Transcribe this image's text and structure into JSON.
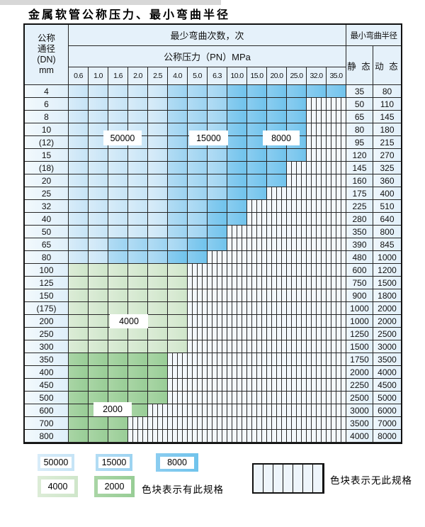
{
  "page": {
    "title": "金属软管公称压力、最小弯曲半径"
  },
  "table": {
    "header": {
      "dn_lines": [
        "公称",
        "通径",
        "(DN)",
        "mm"
      ],
      "bend_cycles": "最少弯曲次数，次",
      "pressure": "公称压力（PN）MPa",
      "min_radius": "最小弯曲半径",
      "static_label": "静 态",
      "dynamic_label": "动 态",
      "pressure_cols": [
        "0.6",
        "1.0",
        "1.6",
        "2.0",
        "2.5",
        "4.0",
        "5.0",
        "6.3",
        "10.0",
        "15.0",
        "20.0",
        "25.0",
        "32.0",
        "35.0"
      ]
    },
    "color_codes": {
      "b1": "50000",
      "b2": "15000",
      "b3": "8000",
      "g1": "4000",
      "g2": "2000",
      "st": "无此规格"
    },
    "rows": [
      {
        "dn": "4",
        "cells": [
          "b1",
          "b1",
          "b1",
          "b1",
          "b1",
          "b2",
          "b2",
          "b2",
          "b3",
          "b3",
          "b3",
          "b3",
          "b3",
          "b3"
        ],
        "s": "35",
        "d": "80"
      },
      {
        "dn": "6",
        "cells": [
          "b1",
          "b1",
          "b1",
          "b1",
          "b1",
          "b2",
          "b2",
          "b2",
          "b3",
          "b3",
          "b3",
          "b3",
          "st",
          "st"
        ],
        "s": "50",
        "d": "110"
      },
      {
        "dn": "8",
        "cells": [
          "b1",
          "b1",
          "b1",
          "b1",
          "b1",
          "b2",
          "b2",
          "b2",
          "b3",
          "b3",
          "b3",
          "b3",
          "st",
          "st"
        ],
        "s": "65",
        "d": "145"
      },
      {
        "dn": "10",
        "cells": [
          "b1",
          "b1",
          "b1",
          "b1",
          "b1",
          "b2",
          "b2",
          "b2",
          "b3",
          "b3",
          "b3",
          "b3",
          "st",
          "st"
        ],
        "s": "80",
        "d": "180"
      },
      {
        "dn": "(12)",
        "cells": [
          "b1",
          "b1",
          "b1",
          "b1",
          "b1",
          "b2",
          "b2",
          "b2",
          "b3",
          "b3",
          "b3",
          "b3",
          "st",
          "st"
        ],
        "s": "95",
        "d": "215"
      },
      {
        "dn": "15",
        "cells": [
          "b1",
          "b1",
          "b1",
          "b1",
          "b1",
          "b2",
          "b2",
          "b2",
          "b3",
          "b3",
          "b3",
          "b3",
          "st",
          "st"
        ],
        "s": "120",
        "d": "270"
      },
      {
        "dn": "(18)",
        "cells": [
          "b1",
          "b1",
          "b1",
          "b1",
          "b1",
          "b2",
          "b2",
          "b2",
          "b3",
          "b3",
          "b3",
          "st",
          "st",
          "st"
        ],
        "s": "145",
        "d": "325"
      },
      {
        "dn": "20",
        "cells": [
          "b1",
          "b1",
          "b1",
          "b1",
          "b1",
          "b2",
          "b2",
          "b2",
          "b3",
          "b3",
          "b3",
          "st",
          "st",
          "st"
        ],
        "s": "160",
        "d": "360"
      },
      {
        "dn": "25",
        "cells": [
          "b1",
          "b1",
          "b1",
          "b1",
          "b1",
          "b2",
          "b2",
          "b2",
          "b3",
          "b3",
          "st",
          "st",
          "st",
          "st"
        ],
        "s": "175",
        "d": "400"
      },
      {
        "dn": "32",
        "cells": [
          "b1",
          "b1",
          "b1",
          "b1",
          "b1",
          "b2",
          "b2",
          "b3",
          "b3",
          "st",
          "st",
          "st",
          "st",
          "st"
        ],
        "s": "225",
        "d": "510"
      },
      {
        "dn": "40",
        "cells": [
          "b1",
          "b1",
          "b1",
          "b1",
          "b1",
          "b2",
          "b2",
          "b3",
          "b3",
          "st",
          "st",
          "st",
          "st",
          "st"
        ],
        "s": "280",
        "d": "640"
      },
      {
        "dn": "50",
        "cells": [
          "b1",
          "b1",
          "b1",
          "b1",
          "b1",
          "b2",
          "b2",
          "b3",
          "st",
          "st",
          "st",
          "st",
          "st",
          "st"
        ],
        "s": "350",
        "d": "800"
      },
      {
        "dn": "65",
        "cells": [
          "b1",
          "b1",
          "b2",
          "b2",
          "b2",
          "b2",
          "b3",
          "b3",
          "st",
          "st",
          "st",
          "st",
          "st",
          "st"
        ],
        "s": "390",
        "d": "845"
      },
      {
        "dn": "80",
        "cells": [
          "b1",
          "b1",
          "b2",
          "b2",
          "b2",
          "b3",
          "b3",
          "st",
          "st",
          "st",
          "st",
          "st",
          "st",
          "st"
        ],
        "s": "480",
        "d": "1000"
      },
      {
        "dn": "100",
        "cells": [
          "g1",
          "g1",
          "g1",
          "g1",
          "g1",
          "g1",
          "st",
          "st",
          "st",
          "st",
          "st",
          "st",
          "st",
          "st"
        ],
        "s": "600",
        "d": "1200"
      },
      {
        "dn": "125",
        "cells": [
          "g1",
          "g1",
          "g1",
          "g1",
          "g1",
          "g1",
          "st",
          "st",
          "st",
          "st",
          "st",
          "st",
          "st",
          "st"
        ],
        "s": "750",
        "d": "1500"
      },
      {
        "dn": "150",
        "cells": [
          "g1",
          "g1",
          "g1",
          "g1",
          "g1",
          "g1",
          "st",
          "st",
          "st",
          "st",
          "st",
          "st",
          "st",
          "st"
        ],
        "s": "900",
        "d": "1800"
      },
      {
        "dn": "(175)",
        "cells": [
          "g1",
          "g1",
          "g1",
          "g1",
          "g1",
          "g1",
          "st",
          "st",
          "st",
          "st",
          "st",
          "st",
          "st",
          "st"
        ],
        "s": "1000",
        "d": "2000"
      },
      {
        "dn": "200",
        "cells": [
          "g1",
          "g1",
          "g1",
          "g1",
          "g1",
          "g1",
          "st",
          "st",
          "st",
          "st",
          "st",
          "st",
          "st",
          "st"
        ],
        "s": "1000",
        "d": "2000"
      },
      {
        "dn": "250",
        "cells": [
          "g1",
          "g1",
          "g1",
          "g1",
          "g1",
          "g1",
          "st",
          "st",
          "st",
          "st",
          "st",
          "st",
          "st",
          "st"
        ],
        "s": "1250",
        "d": "2500"
      },
      {
        "dn": "300",
        "cells": [
          "g1",
          "g1",
          "g1",
          "g1",
          "g1",
          "g1",
          "st",
          "st",
          "st",
          "st",
          "st",
          "st",
          "st",
          "st"
        ],
        "s": "1500",
        "d": "3000"
      },
      {
        "dn": "350",
        "cells": [
          "g2",
          "g2",
          "g2",
          "g2",
          "g2",
          "st",
          "st",
          "st",
          "st",
          "st",
          "st",
          "st",
          "st",
          "st"
        ],
        "s": "1750",
        "d": "3500"
      },
      {
        "dn": "400",
        "cells": [
          "g2",
          "g2",
          "g2",
          "g2",
          "g2",
          "st",
          "st",
          "st",
          "st",
          "st",
          "st",
          "st",
          "st",
          "st"
        ],
        "s": "2000",
        "d": "4000"
      },
      {
        "dn": "450",
        "cells": [
          "g2",
          "g2",
          "g2",
          "g2",
          "g2",
          "st",
          "st",
          "st",
          "st",
          "st",
          "st",
          "st",
          "st",
          "st"
        ],
        "s": "2250",
        "d": "4500"
      },
      {
        "dn": "500",
        "cells": [
          "g2",
          "g2",
          "g2",
          "g2",
          "g2",
          "st",
          "st",
          "st",
          "st",
          "st",
          "st",
          "st",
          "st",
          "st"
        ],
        "s": "2500",
        "d": "5000"
      },
      {
        "dn": "600",
        "cells": [
          "g2",
          "g2",
          "g2",
          "g2",
          "st",
          "st",
          "st",
          "st",
          "st",
          "st",
          "st",
          "st",
          "st",
          "st"
        ],
        "s": "3000",
        "d": "6000"
      },
      {
        "dn": "700",
        "cells": [
          "g2",
          "g2",
          "g2",
          "st",
          "st",
          "st",
          "st",
          "st",
          "st",
          "st",
          "st",
          "st",
          "st",
          "st"
        ],
        "s": "3500",
        "d": "7000"
      },
      {
        "dn": "800",
        "cells": [
          "g2",
          "g2",
          "g2",
          "st",
          "st",
          "st",
          "st",
          "st",
          "st",
          "st",
          "st",
          "st",
          "st",
          "st"
        ],
        "s": "4000",
        "d": "8000"
      }
    ]
  },
  "overlays": [
    {
      "label": "50000"
    },
    {
      "label": "15000"
    },
    {
      "label": "8000"
    },
    {
      "label": "4000"
    },
    {
      "label": "2000"
    }
  ],
  "legend": {
    "items": [
      {
        "value": "50000"
      },
      {
        "value": "15000"
      },
      {
        "value": "8000"
      },
      {
        "value": "4000"
      },
      {
        "value": "2000"
      }
    ],
    "has_spec_text": "色块表示有此规格",
    "no_spec_text": "色块表示无此规格"
  },
  "colors": {
    "blue_50000": "#cfe7f7",
    "blue_15000": "#a7d7f2",
    "blue_8000": "#7cc7ee",
    "green_4000": "#d5e9d0",
    "green_2000": "#a0d09d",
    "header_bg": "#e5f1fa",
    "grid_line": "#262626"
  }
}
